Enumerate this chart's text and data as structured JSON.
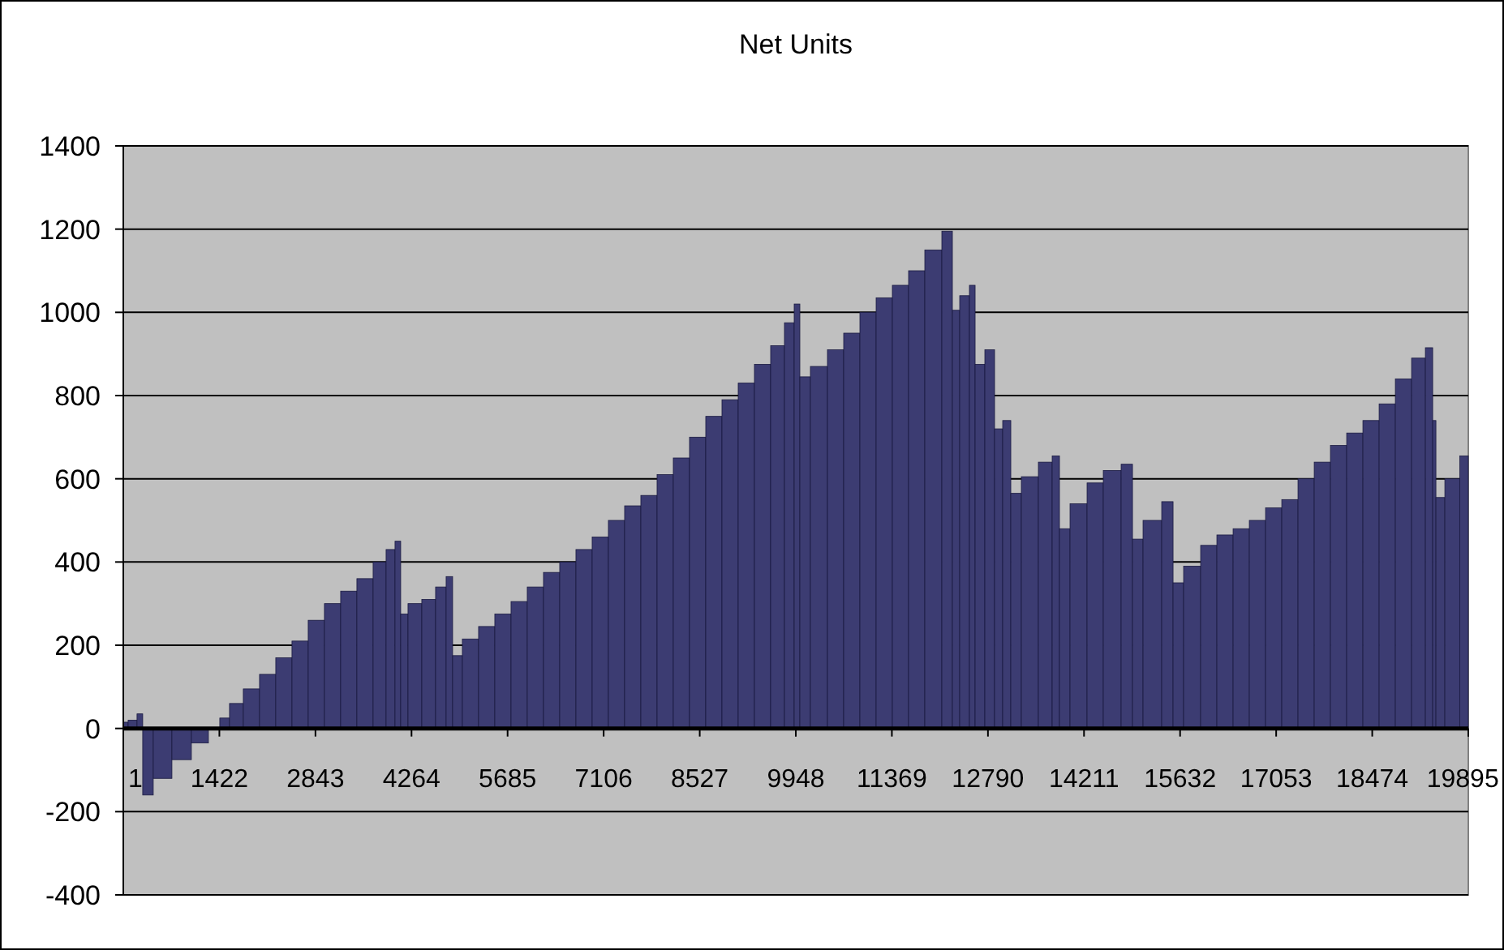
{
  "chart_data": {
    "type": "bar",
    "title": "Net Units",
    "color": "#3c3c72",
    "x": [
      1,
      144,
      264,
      312,
      576,
      864,
      1152,
      1368,
      1488,
      1656,
      1896,
      2136,
      2376,
      2616,
      2856,
      3096,
      3336,
      3576,
      3816,
      3960,
      4080,
      4128,
      4296,
      4536,
      4704,
      4848,
      4896,
      5136,
      5376,
      5616,
      5856,
      6096,
      6336,
      6576,
      6816,
      7056,
      7296,
      7536,
      7776,
      8016,
      8256,
      8496,
      8736,
      8976,
      9216,
      9456,
      9696,
      9864,
      9984,
      10032,
      10296,
      10536,
      10776,
      11016,
      11256,
      11496,
      11736,
      11976,
      12240,
      12288,
      12456,
      12576,
      12624,
      12864,
      12912,
      13104,
      13152,
      13416,
      13656,
      13824,
      13872,
      14136,
      14376,
      14616,
      14904,
      14952,
      15216,
      15504,
      15552,
      15816,
      16056,
      16296,
      16536,
      16776,
      17016,
      17256,
      17496,
      17736,
      17976,
      18216,
      18456,
      18696,
      18936,
      19176,
      19344,
      19392,
      19440,
      19656,
      19880
    ],
    "values": [
      15,
      20,
      35,
      -160,
      -120,
      -75,
      -35,
      -3,
      25,
      60,
      95,
      130,
      170,
      210,
      260,
      300,
      330,
      360,
      400,
      430,
      450,
      275,
      300,
      310,
      340,
      365,
      175,
      215,
      245,
      275,
      305,
      340,
      375,
      400,
      430,
      460,
      500,
      535,
      560,
      610,
      650,
      700,
      750,
      790,
      830,
      875,
      920,
      975,
      1020,
      845,
      870,
      910,
      950,
      1000,
      1035,
      1065,
      1100,
      1150,
      1195,
      1005,
      1040,
      1065,
      875,
      910,
      720,
      740,
      565,
      605,
      640,
      655,
      480,
      540,
      590,
      620,
      635,
      455,
      500,
      545,
      350,
      390,
      440,
      465,
      480,
      500,
      530,
      550,
      600,
      640,
      680,
      710,
      740,
      780,
      840,
      890,
      915,
      740,
      555,
      600,
      655
    ],
    "xlim": [
      1,
      19895
    ],
    "xticks": [
      1,
      1422,
      2843,
      4264,
      5685,
      7106,
      8527,
      9948,
      11369,
      12790,
      14211,
      15632,
      17053,
      18474,
      19895
    ],
    "ylim": [
      -400,
      1400
    ],
    "yticks": [
      -400,
      -200,
      0,
      200,
      400,
      600,
      800,
      1000,
      1200,
      1400
    ],
    "grid": "y"
  }
}
